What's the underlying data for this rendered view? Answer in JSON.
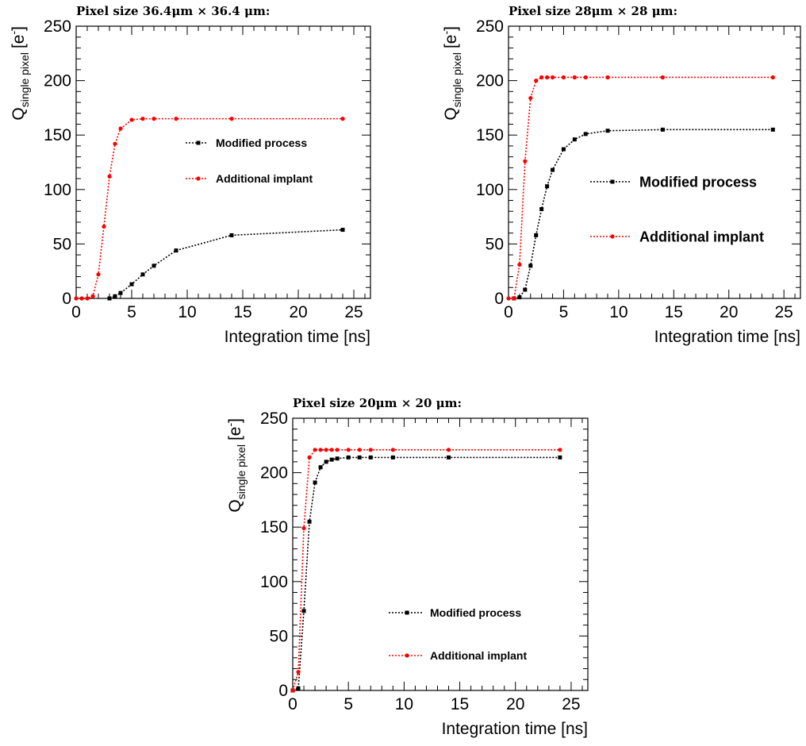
{
  "chart_data": [
    {
      "type": "line",
      "title": "Pixel size 36.4μm × 36.4 μm:",
      "xlabel": "Integration time [ns]",
      "ylabel": "Q",
      "ylabel_sub": "single pixel",
      "ylabel_unit": "[e",
      "ylabel_unit_sup": "-",
      "ylabel_unit_close": "]",
      "xlim": [
        0,
        26.5
      ],
      "ylim": [
        0,
        250
      ],
      "x_ticks": [
        "0",
        "5",
        "10",
        "15",
        "20",
        "25"
      ],
      "y_ticks": [
        "0",
        "50",
        "100",
        "150",
        "200",
        "250"
      ],
      "legend_position": "right",
      "series": [
        {
          "name": "Modified process",
          "color": "#000000",
          "marker": "square",
          "x": [
            3,
            3.5,
            4,
            5,
            6,
            7,
            9,
            14,
            24
          ],
          "y": [
            0,
            2,
            5,
            13,
            22,
            30,
            44,
            58,
            63
          ]
        },
        {
          "name": "Additional implant",
          "color": "#ff0000",
          "marker": "circle",
          "x": [
            0,
            0.5,
            1,
            1.5,
            2,
            2.5,
            3,
            3.5,
            4,
            5,
            6,
            7,
            9,
            14,
            24
          ],
          "y": [
            0,
            0,
            0,
            2,
            22,
            66,
            112,
            142,
            156,
            164,
            165,
            165,
            165,
            165,
            165
          ]
        }
      ]
    },
    {
      "type": "line",
      "title": "Pixel size 28μm × 28 μm:",
      "xlabel": "Integration time [ns]",
      "ylabel": "Q",
      "ylabel_sub": "single pixel",
      "ylabel_unit": "[e",
      "ylabel_unit_sup": "-",
      "ylabel_unit_close": "]",
      "xlim": [
        0,
        26.5
      ],
      "ylim": [
        0,
        250
      ],
      "x_ticks": [
        "0",
        "5",
        "10",
        "15",
        "20",
        "25"
      ],
      "y_ticks": [
        "0",
        "50",
        "100",
        "150",
        "200",
        "250"
      ],
      "legend_position": "right",
      "series": [
        {
          "name": "Modified process",
          "color": "#000000",
          "marker": "square",
          "x": [
            0.5,
            1,
            1.5,
            2,
            2.5,
            3,
            3.5,
            4,
            5,
            6,
            7,
            9,
            14,
            24
          ],
          "y": [
            0,
            1,
            8,
            30,
            58,
            82,
            103,
            118,
            137,
            146,
            151,
            154,
            155,
            155
          ]
        },
        {
          "name": "Additional implant",
          "color": "#ff0000",
          "marker": "circle",
          "x": [
            0,
            0.5,
            1,
            1.5,
            2,
            2.5,
            3,
            3.5,
            4,
            5,
            6,
            7,
            9,
            14,
            24
          ],
          "y": [
            0,
            0,
            31,
            126,
            184,
            200,
            203,
            203,
            203,
            203,
            203,
            203,
            203,
            203,
            203
          ]
        }
      ]
    },
    {
      "type": "line",
      "title": "Pixel size 20μm × 20 μm:",
      "xlabel": "Integration time [ns]",
      "ylabel": "Q",
      "ylabel_sub": "single pixel",
      "ylabel_unit": "[e",
      "ylabel_unit_sup": "-",
      "ylabel_unit_close": "]",
      "xlim": [
        0,
        26.5
      ],
      "ylim": [
        0,
        250
      ],
      "x_ticks": [
        "0",
        "5",
        "10",
        "15",
        "20",
        "25"
      ],
      "y_ticks": [
        "0",
        "50",
        "100",
        "150",
        "200",
        "250"
      ],
      "legend_position": "bottom-right",
      "series": [
        {
          "name": "Modified process",
          "color": "#000000",
          "marker": "square",
          "x": [
            0,
            0.5,
            1,
            1.5,
            2,
            2.5,
            3,
            3.5,
            4,
            5,
            6,
            7,
            9,
            14,
            24
          ],
          "y": [
            0,
            2,
            73,
            155,
            191,
            205,
            210,
            212,
            213,
            214,
            214,
            214,
            214,
            214,
            214
          ]
        },
        {
          "name": "Additional implant",
          "color": "#ff0000",
          "marker": "circle",
          "x": [
            0,
            0.5,
            1,
            1.5,
            2,
            2.5,
            3,
            3.5,
            4,
            5,
            6,
            7,
            9,
            14,
            24
          ],
          "y": [
            0,
            17,
            149,
            214,
            221,
            221,
            221,
            221,
            221,
            221,
            221,
            221,
            221,
            221,
            221
          ]
        }
      ]
    }
  ]
}
